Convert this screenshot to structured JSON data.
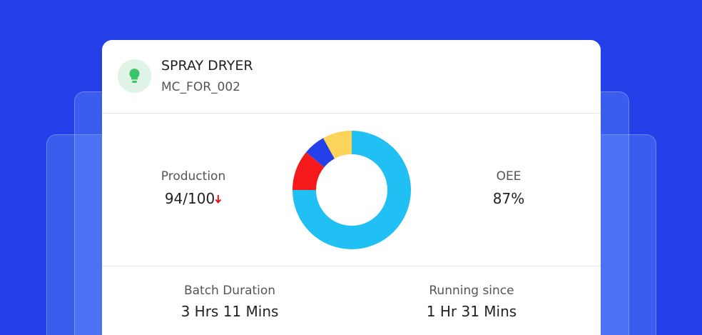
{
  "header": {
    "title": "SPRAY DRYER",
    "subtitle": "MC_FOR_002"
  },
  "stats": [
    {
      "label": "Production",
      "value": "94/100"
    },
    {
      "label": "OEE",
      "value": "87%"
    },
    {
      "label": "Batch Duration",
      "value": "3 Hrs 11 Mins"
    },
    {
      "label": "Running since",
      "value": "1 Hr 31 Mins"
    }
  ],
  "chart_data": {
    "type": "donut",
    "values": [
      75,
      11,
      6,
      8
    ],
    "colors": [
      "#20c0f5",
      "#f5191c",
      "#2540e8",
      "#fdd45a"
    ]
  }
}
